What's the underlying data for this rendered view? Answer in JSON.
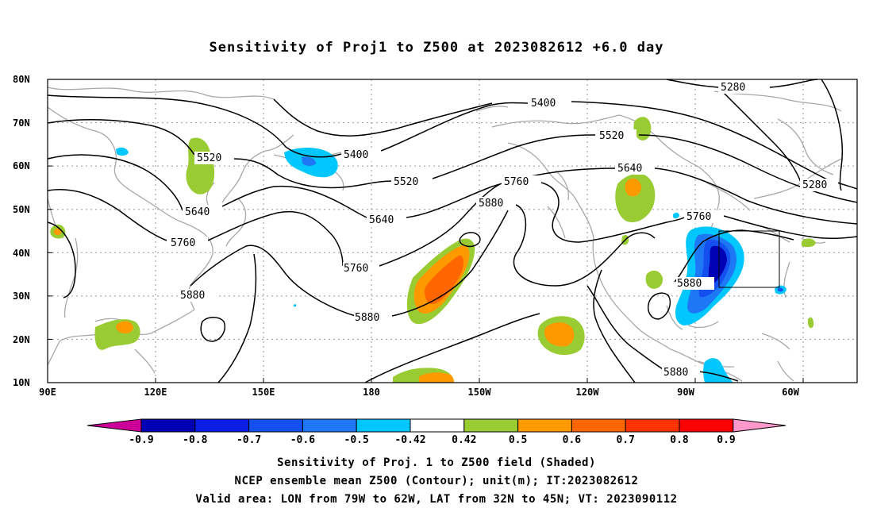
{
  "title": "Sensitivity of Proj1 to Z500 at 2023082612 +6.0 day",
  "lat_labels": [
    "80N",
    "70N",
    "60N",
    "50N",
    "40N",
    "30N",
    "20N",
    "10N"
  ],
  "lon_labels": [
    "90E",
    "120E",
    "150E",
    "180",
    "150W",
    "120W",
    "90W",
    "60W"
  ],
  "contour_labels": [
    "5280",
    "5280",
    "5400",
    "5400",
    "5520",
    "5520",
    "5520",
    "5640",
    "5640",
    "5640",
    "5760",
    "5760",
    "5760",
    "5760",
    "5880",
    "5880",
    "5880",
    "5880",
    "5880"
  ],
  "colorbar": {
    "labels": [
      "-0.9",
      "-0.8",
      "-0.7",
      "-0.6",
      "-0.5",
      "-0.42",
      "0.42",
      "0.5",
      "0.6",
      "0.7",
      "0.8",
      "0.9"
    ],
    "colors": [
      "#0000b4",
      "#0a1ee6",
      "#1450f0",
      "#1e78f5",
      "#00c8ff",
      "#ffffff",
      "#99cc33",
      "#ff9900",
      "#ff6600",
      "#ff3300",
      "#ff0000"
    ],
    "low_arrow_color": "#cc0099",
    "high_arrow_color": "#ff99cc"
  },
  "captions": {
    "line1": "Sensitivity of Proj. 1 to Z500 field (Shaded)",
    "line2": "NCEP ensemble mean Z500 (Contour); unit(m); IT:2023082612",
    "line3": "Valid area: LON from 79W to 62W, LAT from 32N to 45N; VT: 2023090112"
  },
  "map_colors": {
    "coast": "#a8a8a8",
    "contour": "#000000",
    "grid": "#9a9a9a",
    "green": "#99cc33",
    "orange": "#ff9900",
    "dark_orange": "#ff6600",
    "light_blue": "#00c8ff",
    "mid_blue": "#1e78f5",
    "blue": "#1450f0",
    "dark_blue": "#0000b4"
  }
}
